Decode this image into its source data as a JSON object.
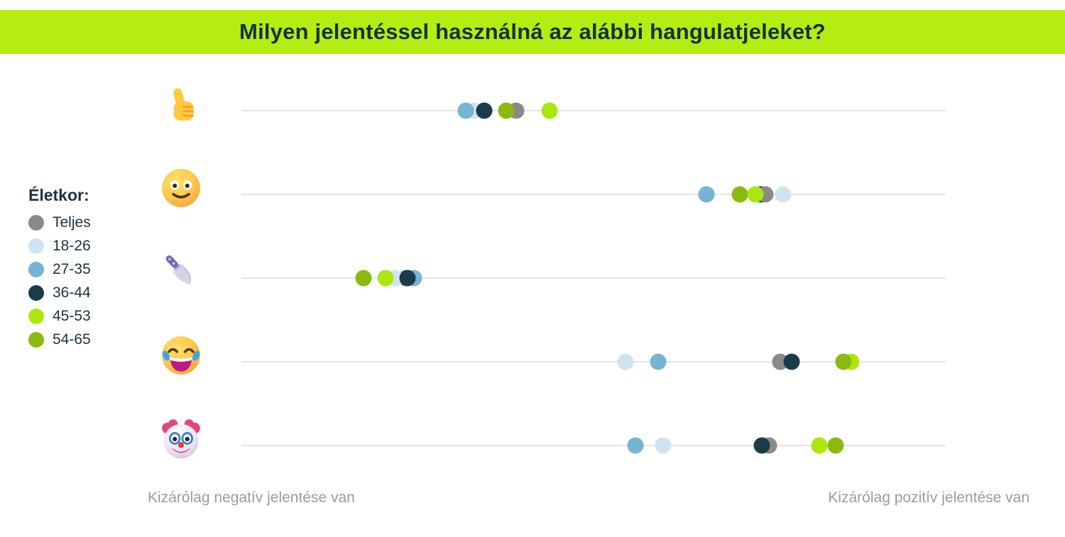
{
  "header": {
    "title": "Milyen jelentéssel használná az alábbi hangulatjeleket?",
    "background": "#b5ed13",
    "text_color": "#14323e"
  },
  "legend": {
    "title": "Életkor:",
    "items": [
      {
        "label": "Teljes",
        "color": "#8a8a86"
      },
      {
        "label": "18-26",
        "color": "#cfe4f1"
      },
      {
        "label": "27-35",
        "color": "#75b4d3"
      },
      {
        "label": "36-44",
        "color": "#1b3b4b"
      },
      {
        "label": "45-53",
        "color": "#aae80d"
      },
      {
        "label": "54-65",
        "color": "#8aba10"
      }
    ]
  },
  "footer": {
    "left_label": "Kizárólag negatív jelentése van",
    "right_label": "Kizárólag pozitív jelentése van"
  },
  "chart_data": {
    "type": "scatter",
    "title": "Milyen jelentéssel használná az alábbi hangulatjeleket?",
    "categories": [
      "thumbs-up",
      "slightly-smiling-face",
      "kitchen-knife",
      "face-with-tears-of-joy",
      "clown-face"
    ],
    "category_emojis": [
      "👍",
      "🙂",
      "🔪",
      "😂",
      "🤡"
    ],
    "xlim": [
      0,
      100
    ],
    "x_min_label": "Kizárólag negatív jelentése van",
    "x_max_label": "Kizárólag pozitív jelentése van",
    "legend_title": "Életkor:",
    "grid": false,
    "legend_position": "left",
    "series": [
      {
        "name": "Teljes",
        "color": "#8a8a86",
        "values": [
          39.0,
          74.4,
          23.4,
          76.5,
          74.9
        ]
      },
      {
        "name": "18-26",
        "color": "#cfe4f1",
        "values": [
          33.1,
          76.9,
          21.8,
          54.5,
          59.9
        ]
      },
      {
        "name": "27-35",
        "color": "#75b4d3",
        "values": [
          31.9,
          66.0,
          24.5,
          59.2,
          55.9
        ]
      },
      {
        "name": "36-44",
        "color": "#1b3b4b",
        "values": [
          34.5,
          73.8,
          23.6,
          78.1,
          73.9
        ]
      },
      {
        "name": "45-53",
        "color": "#aae80d",
        "values": [
          43.7,
          73.0,
          20.5,
          86.6,
          82.1
        ]
      },
      {
        "name": "54-65",
        "color": "#8aba10",
        "values": [
          37.6,
          70.8,
          17.3,
          85.5,
          84.4
        ]
      }
    ],
    "draw_order": [
      [
        "18-26",
        "27-35",
        "36-44",
        "Teljes",
        "54-65",
        "45-53"
      ],
      [
        "18-26",
        "27-35",
        "36-44",
        "Teljes",
        "54-65",
        "45-53"
      ],
      [
        "Teljes",
        "27-35",
        "18-26",
        "54-65",
        "45-53",
        "36-44"
      ],
      [
        "18-26",
        "27-35",
        "Teljes",
        "36-44",
        "45-53",
        "54-65"
      ],
      [
        "18-26",
        "27-35",
        "Teljes",
        "36-44",
        "45-53",
        "54-65"
      ]
    ]
  }
}
